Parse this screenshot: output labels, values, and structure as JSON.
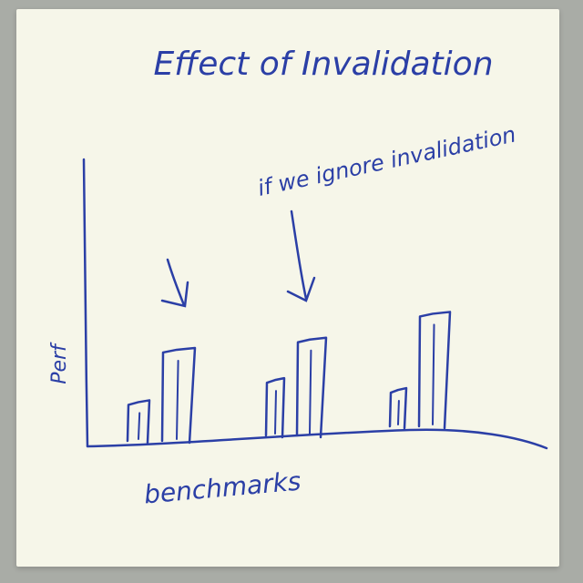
{
  "chart_data": {
    "type": "bar",
    "title": "Effect of Invalidation",
    "xlabel": "benchmarks",
    "ylabel": "Perf",
    "categories": [
      "",
      "",
      ""
    ],
    "series": [
      {
        "values": [
          1.4,
          2.1,
          1.3
        ]
      },
      {
        "values": [
          3.6,
          3.8,
          4.5
        ]
      }
    ],
    "ylim": [
      0,
      8
    ],
    "annotations": [
      {
        "text": "if we ignore invalidation"
      }
    ],
    "grid": false,
    "legend": "none",
    "colors": {
      "ink": "#2b3fa6",
      "paper": "#f6f6e9"
    }
  }
}
